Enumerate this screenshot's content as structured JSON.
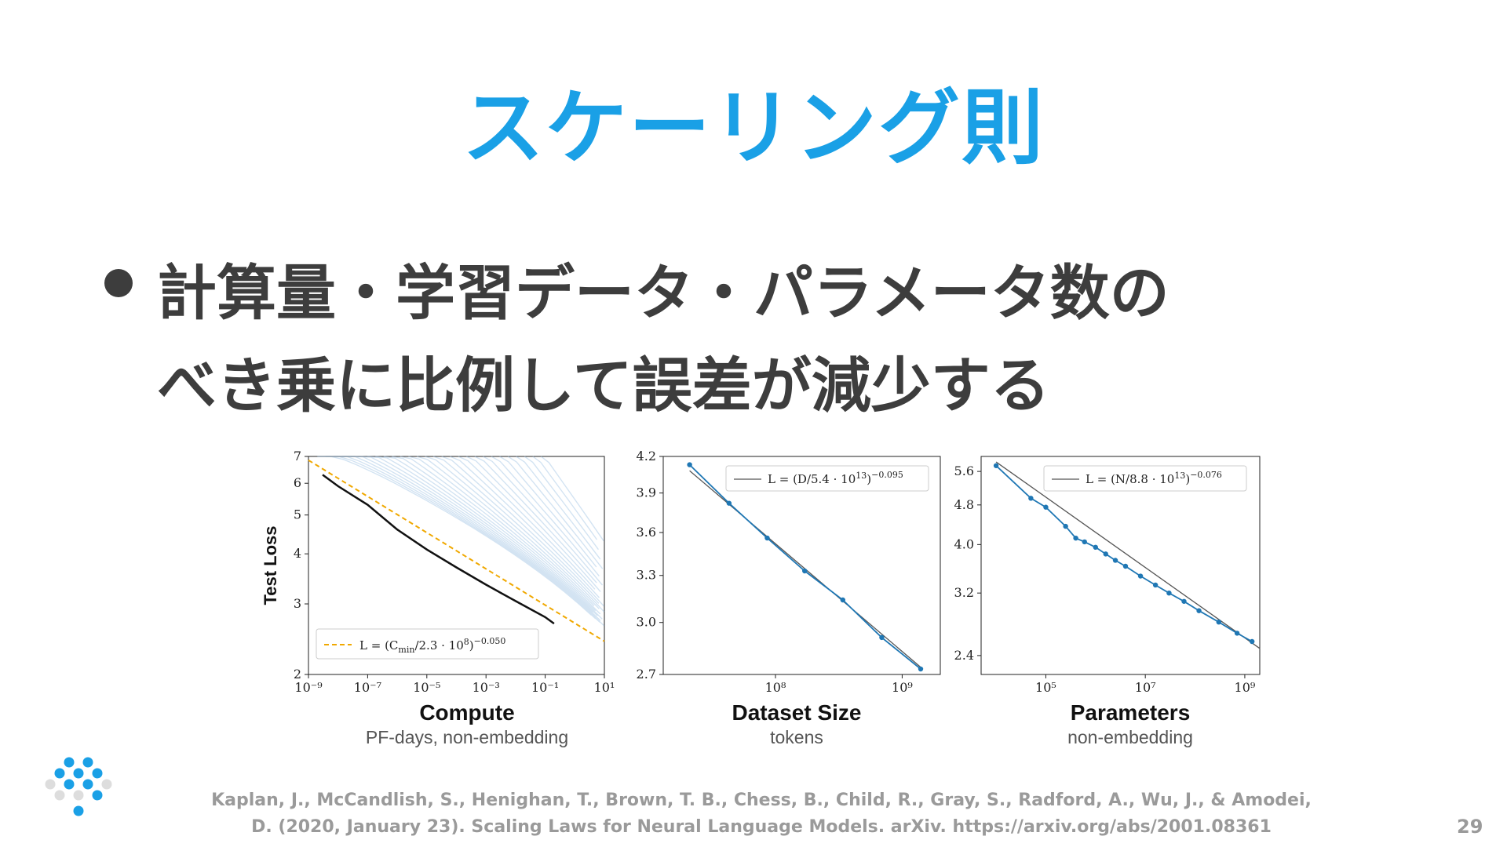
{
  "title": "スケーリング則",
  "bullet": {
    "line1": "計算量・学習データ・パラメータ数の",
    "line2": "べき乗に比例して誤差が減少する"
  },
  "colors": {
    "title": "#1aa0e6",
    "text": "#3d3d3d",
    "series": "#1f77b4",
    "fit_dashed": "#f0a800",
    "thin_curves": "#9ec3e4"
  },
  "chart_data": [
    {
      "type": "line",
      "scale": "log-log",
      "ylabel": "Test Loss",
      "xlabel": "Compute",
      "xsub": "PF-days, non-embedding",
      "xticks": [
        "10⁻⁹",
        "10⁻⁷",
        "10⁻⁵",
        "10⁻³",
        "10⁻¹",
        "10¹"
      ],
      "yticks": [
        "2",
        "3",
        "4",
        "5",
        "6",
        "7"
      ],
      "xlim": [
        1e-09,
        10
      ],
      "ylim": [
        2,
        7
      ],
      "legend": "L = (C_min/2.3·10^8)^-0.050",
      "legend_parts": [
        "L = (C",
        "min",
        "/2.3 · 10",
        "8",
        ")",
        "−0.050"
      ],
      "legend_position": "bottom-left",
      "series": [
        {
          "name": "frontier",
          "x": [
            3e-09,
            1e-08,
            1e-07,
            1e-06,
            1e-05,
            0.0001,
            0.001,
            0.01,
            0.1,
            0.2
          ],
          "y": [
            6.3,
            5.9,
            5.3,
            4.6,
            4.1,
            3.7,
            3.35,
            3.05,
            2.78,
            2.68
          ]
        },
        {
          "name": "fit",
          "x": [
            1e-09,
            10
          ],
          "y": [
            6.85,
            2.42
          ]
        }
      ]
    },
    {
      "type": "line",
      "scale": "log-log",
      "xlabel": "Dataset Size",
      "xsub": "tokens",
      "xticks": [
        "10⁸",
        "10⁹"
      ],
      "yticks": [
        "2.7",
        "3.0",
        "3.3",
        "3.6",
        "3.9",
        "4.2"
      ],
      "xlim": [
        13000000.0,
        2000000000.0
      ],
      "ylim": [
        2.7,
        4.2
      ],
      "legend": "L = (D/5.4·10^13)^-0.095",
      "legend_parts": [
        "L = (D/5.4 · 10",
        "13",
        ")",
        "−0.095"
      ],
      "legend_position": "top-right",
      "series": [
        {
          "name": "data",
          "x": [
            21000000.0,
            43000000.0,
            86000000.0,
            170000000.0,
            340000000.0,
            690000000.0,
            1400000000.0
          ],
          "y": [
            4.13,
            3.82,
            3.56,
            3.33,
            3.14,
            2.91,
            2.73
          ]
        },
        {
          "name": "fit",
          "x": [
            21000000.0,
            1400000000.0
          ],
          "y": [
            4.08,
            2.74
          ]
        }
      ]
    },
    {
      "type": "line",
      "scale": "log-log",
      "xlabel": "Parameters",
      "xsub": "non-embedding",
      "xticks": [
        "10⁵",
        "10⁷",
        "10⁹"
      ],
      "yticks": [
        "2.4",
        "3.2",
        "4.0",
        "4.8",
        "5.6"
      ],
      "xlim": [
        5000.0,
        2000000000.0
      ],
      "ylim": [
        2.2,
        6.0
      ],
      "legend": "L = (N/8.8·10^13)^-0.076",
      "legend_parts": [
        "L = (N/8.8 · 10",
        "13",
        ")",
        "−0.076"
      ],
      "legend_position": "top-right",
      "series": [
        {
          "name": "data",
          "x": [
            10000.0,
            50000.0,
            100000.0,
            250000.0,
            400000.0,
            600000.0,
            1000000.0,
            1600000.0,
            2500000.0,
            4000000.0,
            8000000.0,
            16000000.0,
            30000000.0,
            60000000.0,
            120000000.0,
            300000000.0,
            700000000.0,
            1400000000.0
          ],
          "y": [
            5.75,
            4.95,
            4.75,
            4.35,
            4.12,
            4.05,
            3.95,
            3.83,
            3.72,
            3.62,
            3.46,
            3.32,
            3.2,
            3.08,
            2.95,
            2.8,
            2.66,
            2.56
          ]
        },
        {
          "name": "fit",
          "x": [
            10000.0,
            2000000000.0
          ],
          "y": [
            5.85,
            2.48
          ]
        }
      ]
    }
  ],
  "citation": {
    "line1": "Kaplan, J., McCandlish, S., Henighan, T., Brown, T. B., Chess, B., Child, R., Gray, S., Radford, A., Wu, J., & Amodei,",
    "line2": "D. (2020, January 23). Scaling Laws for Neural Language Models. arXiv. https://arxiv.org/abs/2001.08361"
  },
  "page_number": "29"
}
